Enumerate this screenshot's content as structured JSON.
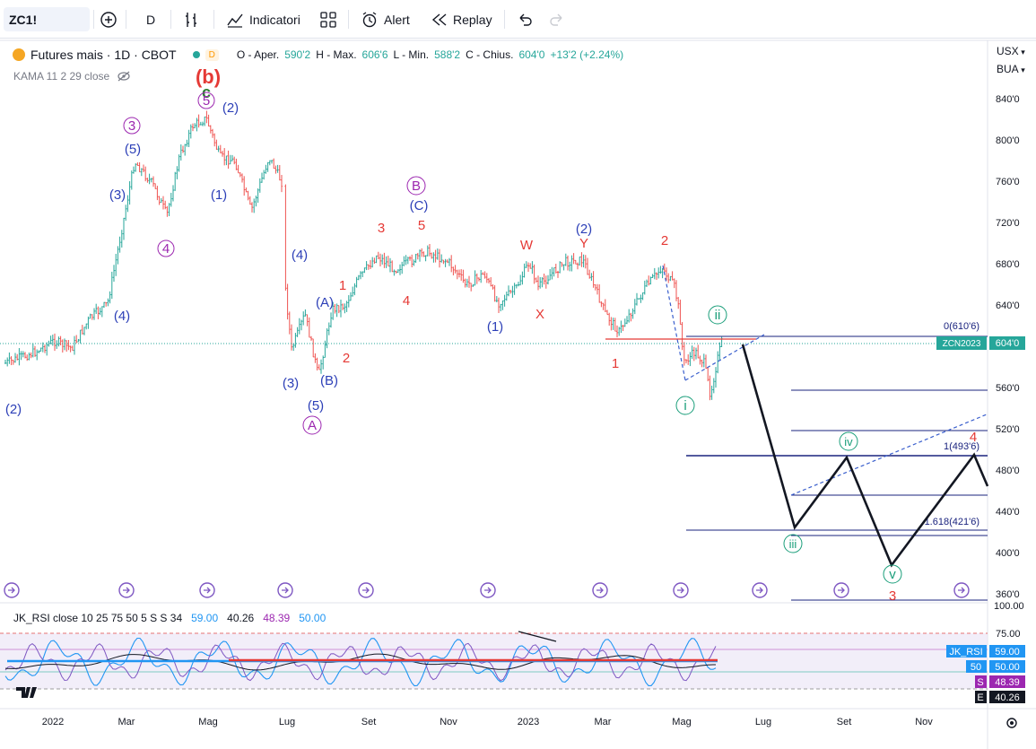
{
  "toolbar": {
    "symbol": "ZC1!",
    "interval": "D",
    "indicators_label": "Indicatori",
    "alert_label": "Alert",
    "replay_label": "Replay"
  },
  "legend": {
    "title": "Futures mais · 1D · CBOT",
    "badge": "D",
    "o_label": "O - Aper.",
    "o_val": "590'2",
    "h_label": "H - Max.",
    "h_val": "606'6",
    "l_label": "L - Min.",
    "l_val": "588'2",
    "c_label": "C - Chius.",
    "c_val": "604'0",
    "change": "+13'2 (+2.24%)",
    "kama": "KAMA 11 2 29 close"
  },
  "price_axis": {
    "currency": "USX",
    "unit": "BUA",
    "ticks": [
      "840'0",
      "800'0",
      "760'0",
      "720'0",
      "680'0",
      "640'0",
      "560'0",
      "520'0",
      "480'0",
      "440'0",
      "400'0",
      "360'0"
    ],
    "last_price": "604'0",
    "symbol_tag": "ZCN2023"
  },
  "fib": {
    "zero": "0(610'6)",
    "one": "1(493'6)",
    "ext": "1.618(421'6)"
  },
  "rsi": {
    "legend_name": "JK_RSI close 10 25 75 50 5 S S 34",
    "values": [
      "59.00",
      "40.26",
      "48.39",
      "50.00"
    ],
    "ticks": [
      "100.00",
      "75.00"
    ],
    "tag_name": "JK_RSI",
    "tag_name_val": "59.00",
    "tag_50": "50",
    "tag_50_val": "50.00",
    "tag_s": "S",
    "tag_s_val": "48.39",
    "tag_e": "E",
    "tag_e_val": "40.26"
  },
  "time_axis": [
    "2022",
    "Mar",
    "Mag",
    "Lug",
    "Set",
    "Nov",
    "2023",
    "Mar",
    "Mag",
    "Lug",
    "Set",
    "Nov"
  ],
  "wave_labels": {
    "b_red": "(b)",
    "c_green": "c",
    "five_circ": "5",
    "two_blue": "(2)",
    "three_circ": "3",
    "five_blue": "(5)",
    "three_blue": "(3)",
    "one_blue": "(1)",
    "four_circ": "4",
    "two_left": "(2)",
    "four_blue": "(4)",
    "A_blue": "(A)",
    "one_red": "1",
    "two_red": "2",
    "three_blue2": "(3)",
    "B_blue": "(B)",
    "five_blue2": "(5)",
    "A_circ": "A",
    "B_circ": "B",
    "C_blue": "(C)",
    "three_red": "3",
    "five_red": "5",
    "four_red": "4",
    "one_blue2": "(1)",
    "W_red": "W",
    "X_red": "X",
    "Y_red": "Y",
    "two_blue2": "(2)",
    "one_red2": "1",
    "two_red2": "2",
    "ii": "ii",
    "i": "i",
    "iii": "iii",
    "iv": "iv",
    "v": "v",
    "four_red2": "4",
    "three_red2": "3"
  },
  "colors": {
    "up": "#26a69a",
    "down": "#ef5350",
    "wave_blue": "#2c3fb7",
    "wave_purple": "#9c27b0",
    "wave_red": "#e53935",
    "wave_teal": "#1a9e7a",
    "fib": "#1a237e",
    "rsi_band": "#ede7f6"
  }
}
